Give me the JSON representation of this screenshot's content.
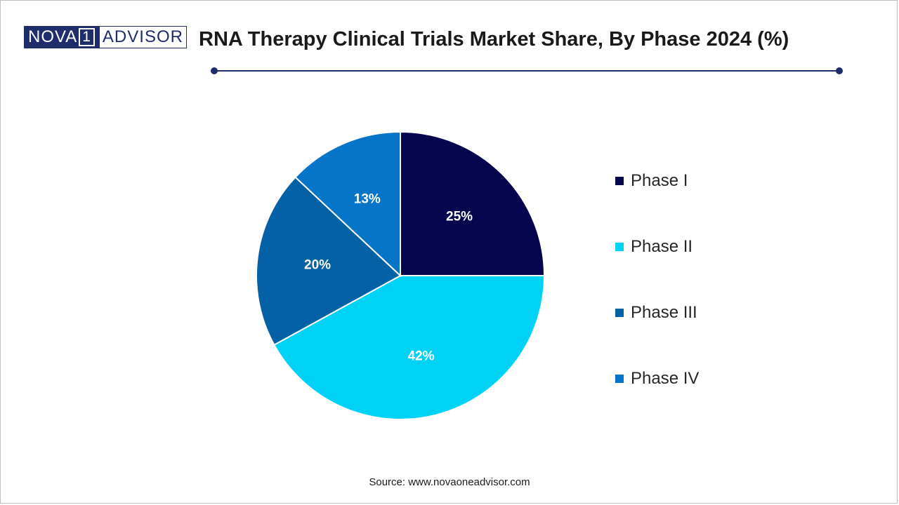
{
  "logo": {
    "left": "NOVA",
    "one": "1",
    "right": "ADVISOR"
  },
  "header": {
    "title": "RNA Therapy Clinical Trials Market Share, By Phase 2024 (%)"
  },
  "source": "Source: www.novaoneadvisor.com",
  "chart_data": {
    "type": "pie",
    "title": "RNA Therapy Clinical Trials Market Share, By Phase 2024 (%)",
    "categories": [
      "Phase I",
      "Phase II",
      "Phase III",
      "Phase IV"
    ],
    "values": [
      25,
      42,
      20,
      13
    ],
    "labels": [
      "25%",
      "42%",
      "20%",
      "13%"
    ],
    "colors": [
      "#06064f",
      "#00d2f5",
      "#0461a6",
      "#0675c8"
    ],
    "start_angle_deg": 0,
    "direction": "clockwise",
    "legend_position": "right"
  },
  "legend": [
    {
      "label": "Phase I",
      "color": "#06064f"
    },
    {
      "label": "Phase II",
      "color": "#00d2f5"
    },
    {
      "label": "Phase III",
      "color": "#0461a6"
    },
    {
      "label": "Phase IV",
      "color": "#0675c8"
    }
  ]
}
